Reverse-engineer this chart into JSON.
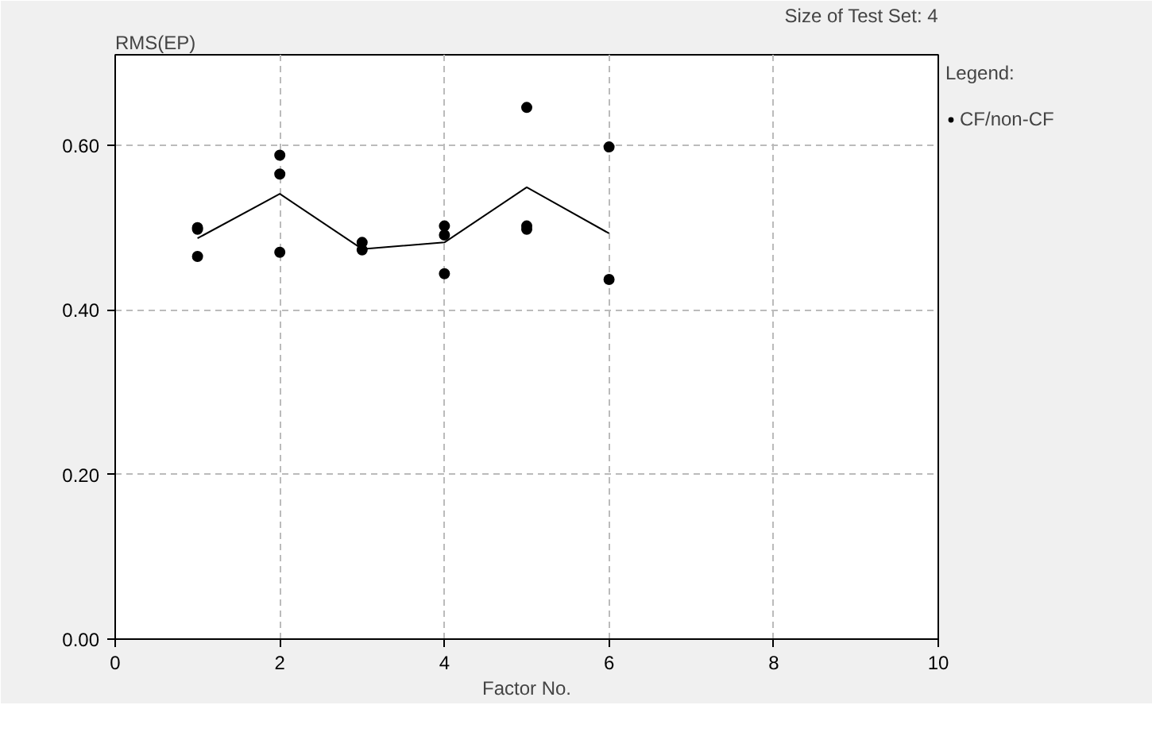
{
  "chart_data": {
    "type": "scatter",
    "xlabel": "Factor No.",
    "ylabel": "RMS(EP)",
    "legend_title": "Legend:",
    "annotations": [
      "Size of Test Set: 4"
    ],
    "series": [
      {
        "name": "CF/non-CF",
        "color": "#000000",
        "marker": "circle",
        "x": [
          1,
          1,
          1,
          2,
          2,
          2,
          3,
          3,
          4,
          4,
          4,
          5,
          5,
          5,
          6,
          6
        ],
        "values": [
          0.5,
          0.498,
          0.465,
          0.588,
          0.565,
          0.47,
          0.482,
          0.473,
          0.502,
          0.491,
          0.444,
          0.646,
          0.502,
          0.498,
          0.598,
          0.437
        ]
      },
      {
        "type": "line",
        "color": "#000000",
        "marker": "none",
        "line_style": "solid",
        "x": [
          1,
          2,
          3,
          4,
          5,
          6
        ],
        "values": [
          0.487,
          0.541,
          0.474,
          0.482,
          0.549,
          0.493
        ]
      }
    ],
    "xlim": [
      0,
      10
    ],
    "xticks": [
      0,
      2,
      4,
      6,
      8,
      10
    ],
    "ylim": [
      0,
      0.71
    ],
    "yticks": [
      {
        "value": 0,
        "label": "0.00"
      },
      {
        "value": 0.2,
        "label": "0.20"
      },
      {
        "value": 0.4,
        "label": "0.40"
      },
      {
        "value": 0.6,
        "label": "0.60"
      }
    ],
    "grid": true,
    "legend": "right"
  }
}
